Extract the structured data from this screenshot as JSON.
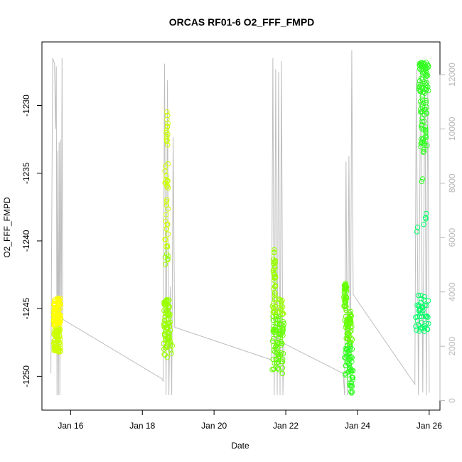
{
  "chart_data": {
    "type": "scatter",
    "title": "ORCAS RF01-6 O2_FFF_FMPD",
    "xlabel": "Date",
    "ylabel": "O2_FFF_FMPD",
    "x_ticks": [
      "Jan 16",
      "Jan 18",
      "Jan 20",
      "Jan 22",
      "Jan 24",
      "Jan 26"
    ],
    "x_tick_values": [
      16,
      18,
      20,
      22,
      24,
      26
    ],
    "xlim": [
      15.2,
      26.3
    ],
    "y_ticks": [
      -1230,
      -1235,
      -1240,
      -1245,
      -1250
    ],
    "ylim": [
      -1252.5,
      -1225.3
    ],
    "y2_ticks": [
      0,
      2000,
      4000,
      6000,
      8000,
      10000,
      12000
    ],
    "y2lim": [
      -350,
      13200
    ],
    "colors": {
      "altitude_line": "#bebebe",
      "right_axis": "#b8b8b8",
      "flight_colors": [
        "#ffff00",
        "#ccff00",
        "#99ff00",
        "#66ff00",
        "#33ff22",
        "#00ff66"
      ]
    },
    "series": [
      {
        "role": "O2_FFF_FMPD (left axis)",
        "flights": [
          {
            "x_range": [
              15.52,
              15.72
            ],
            "y_range": [
              -1248.3,
              -1244.0
            ],
            "clusters": [
              {
                "x": [
                  15.52,
                  15.72
                ],
                "y": [
                  -1248.2,
                  -1244.2
                ],
                "n": 160
              }
            ]
          },
          {
            "x_range": [
              18.58,
              18.85
            ],
            "y_range": [
              -1248.6,
              -1230.2
            ],
            "clusters": [
              {
                "x": [
                  18.6,
                  18.78
                ],
                "y": [
                  -1247.5,
                  -1244.3
                ],
                "n": 70
              },
              {
                "x": [
                  18.63,
                  18.72
                ],
                "y": [
                  -1242.5,
                  -1234.0
                ],
                "n": 35
              },
              {
                "x": [
                  18.66,
                  18.72
                ],
                "y": [
                  -1234.0,
                  -1230.2
                ],
                "n": 14
              },
              {
                "x": [
                  18.58,
                  18.85
                ],
                "y": [
                  -1248.6,
                  -1247.5
                ],
                "n": 14
              }
            ]
          },
          {
            "x_range": [
              21.62,
              21.98
            ],
            "y_range": [
              -1249.8,
              -1240.3
            ],
            "clusters": [
              {
                "x": [
                  21.62,
                  21.95
                ],
                "y": [
                  -1249.8,
                  -1244.3
                ],
                "n": 110
              },
              {
                "x": [
                  21.65,
                  21.72
                ],
                "y": [
                  -1244.3,
                  -1240.3
                ],
                "n": 30
              }
            ]
          },
          {
            "x_range": [
              23.62,
              23.88
            ],
            "y_range": [
              -1251.3,
              -1243.1
            ],
            "clusters": [
              {
                "x": [
                  23.62,
                  23.7
                ],
                "y": [
                  -1245.2,
                  -1243.1
                ],
                "n": 40
              },
              {
                "x": [
                  23.64,
                  23.86
                ],
                "y": [
                  -1250.0,
                  -1245.2
                ],
                "n": 90
              },
              {
                "x": [
                  23.78,
                  23.88
                ],
                "y": [
                  -1251.3,
                  -1249.5
                ],
                "n": 20
              }
            ]
          },
          {
            "x_range": [
              25.62,
              26.0
            ],
            "y_range": [
              -1246.8,
              -1226.8
            ],
            "clusters": [
              {
                "x": [
                  25.72,
                  25.98
                ],
                "y": [
                  -1229.0,
                  -1226.8
                ],
                "n": 60
              },
              {
                "x": [
                  25.75,
                  25.95
                ],
                "y": [
                  -1233.5,
                  -1229.0
                ],
                "n": 50
              },
              {
                "x": [
                  25.62,
                  25.98
                ],
                "y": [
                  -1246.8,
                  -1244.0
                ],
                "n": 45
              },
              {
                "x": [
                  25.65,
                  25.98
                ],
                "y": [
                  -1242.0,
                  -1235.0
                ],
                "n": 8
              }
            ]
          }
        ]
      },
      {
        "role": "altitude trace (right axis, m)",
        "points": [
          [
            15.45,
            1000
          ],
          [
            15.5,
            12600
          ],
          [
            15.55,
            12400
          ],
          [
            15.58,
            10000
          ],
          [
            15.6,
            12300
          ],
          [
            15.62,
            200
          ],
          [
            15.64,
            9200
          ],
          [
            15.66,
            200
          ],
          [
            15.68,
            9500
          ],
          [
            15.7,
            200
          ],
          [
            15.72,
            9600
          ],
          [
            15.74,
            3200
          ],
          [
            15.76,
            12600
          ],
          [
            15.78,
            3000
          ],
          [
            15.9,
            2900
          ],
          [
            18.55,
            800
          ],
          [
            18.58,
            700
          ],
          [
            18.62,
            12400
          ],
          [
            18.66,
            200
          ],
          [
            18.7,
            11800
          ],
          [
            18.74,
            200
          ],
          [
            18.78,
            4200
          ],
          [
            18.82,
            200
          ],
          [
            18.86,
            9700
          ],
          [
            18.9,
            2700
          ],
          [
            21.6,
            1500
          ],
          [
            21.64,
            12600
          ],
          [
            21.68,
            200
          ],
          [
            21.72,
            12200
          ],
          [
            21.76,
            200
          ],
          [
            21.8,
            12100
          ],
          [
            21.84,
            200
          ],
          [
            21.88,
            12500
          ],
          [
            21.92,
            200
          ],
          [
            21.95,
            2100
          ],
          [
            23.6,
            1000
          ],
          [
            23.64,
            200
          ],
          [
            23.68,
            8800
          ],
          [
            23.72,
            200
          ],
          [
            23.76,
            9000
          ],
          [
            23.8,
            200
          ],
          [
            23.84,
            12900
          ],
          [
            23.88,
            3900
          ],
          [
            25.6,
            600
          ],
          [
            25.64,
            12200
          ],
          [
            25.7,
            200
          ],
          [
            25.76,
            12400
          ],
          [
            25.82,
            300
          ],
          [
            25.88,
            12300
          ],
          [
            25.92,
            200
          ],
          [
            25.96,
            12000
          ],
          [
            26.0,
            300
          ]
        ]
      }
    ]
  }
}
